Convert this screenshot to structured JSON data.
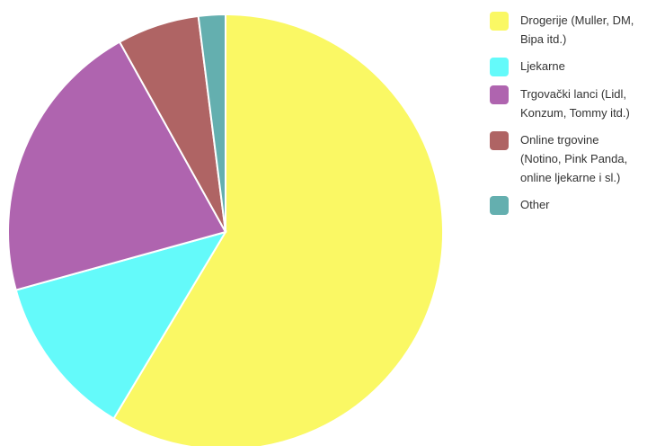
{
  "chart_data": {
    "type": "pie",
    "title": "",
    "categories": [
      "Drogerije (Muller, DM,\nBipa itd.)",
      "Ljekarne",
      "Trgovački lanci (Lidl,\nKonzum, Tommy itd.)",
      "Online trgovine\n(Notino, Pink Panda,\nonline ljekarne i sl.)",
      "Other"
    ],
    "values": [
      58.6,
      12.1,
      21.2,
      6.1,
      2.0
    ],
    "colors": [
      "#FAF864",
      "#64FAFA",
      "#AF64AF",
      "#AF6464",
      "#64AFAF"
    ],
    "legend_position": "right"
  }
}
